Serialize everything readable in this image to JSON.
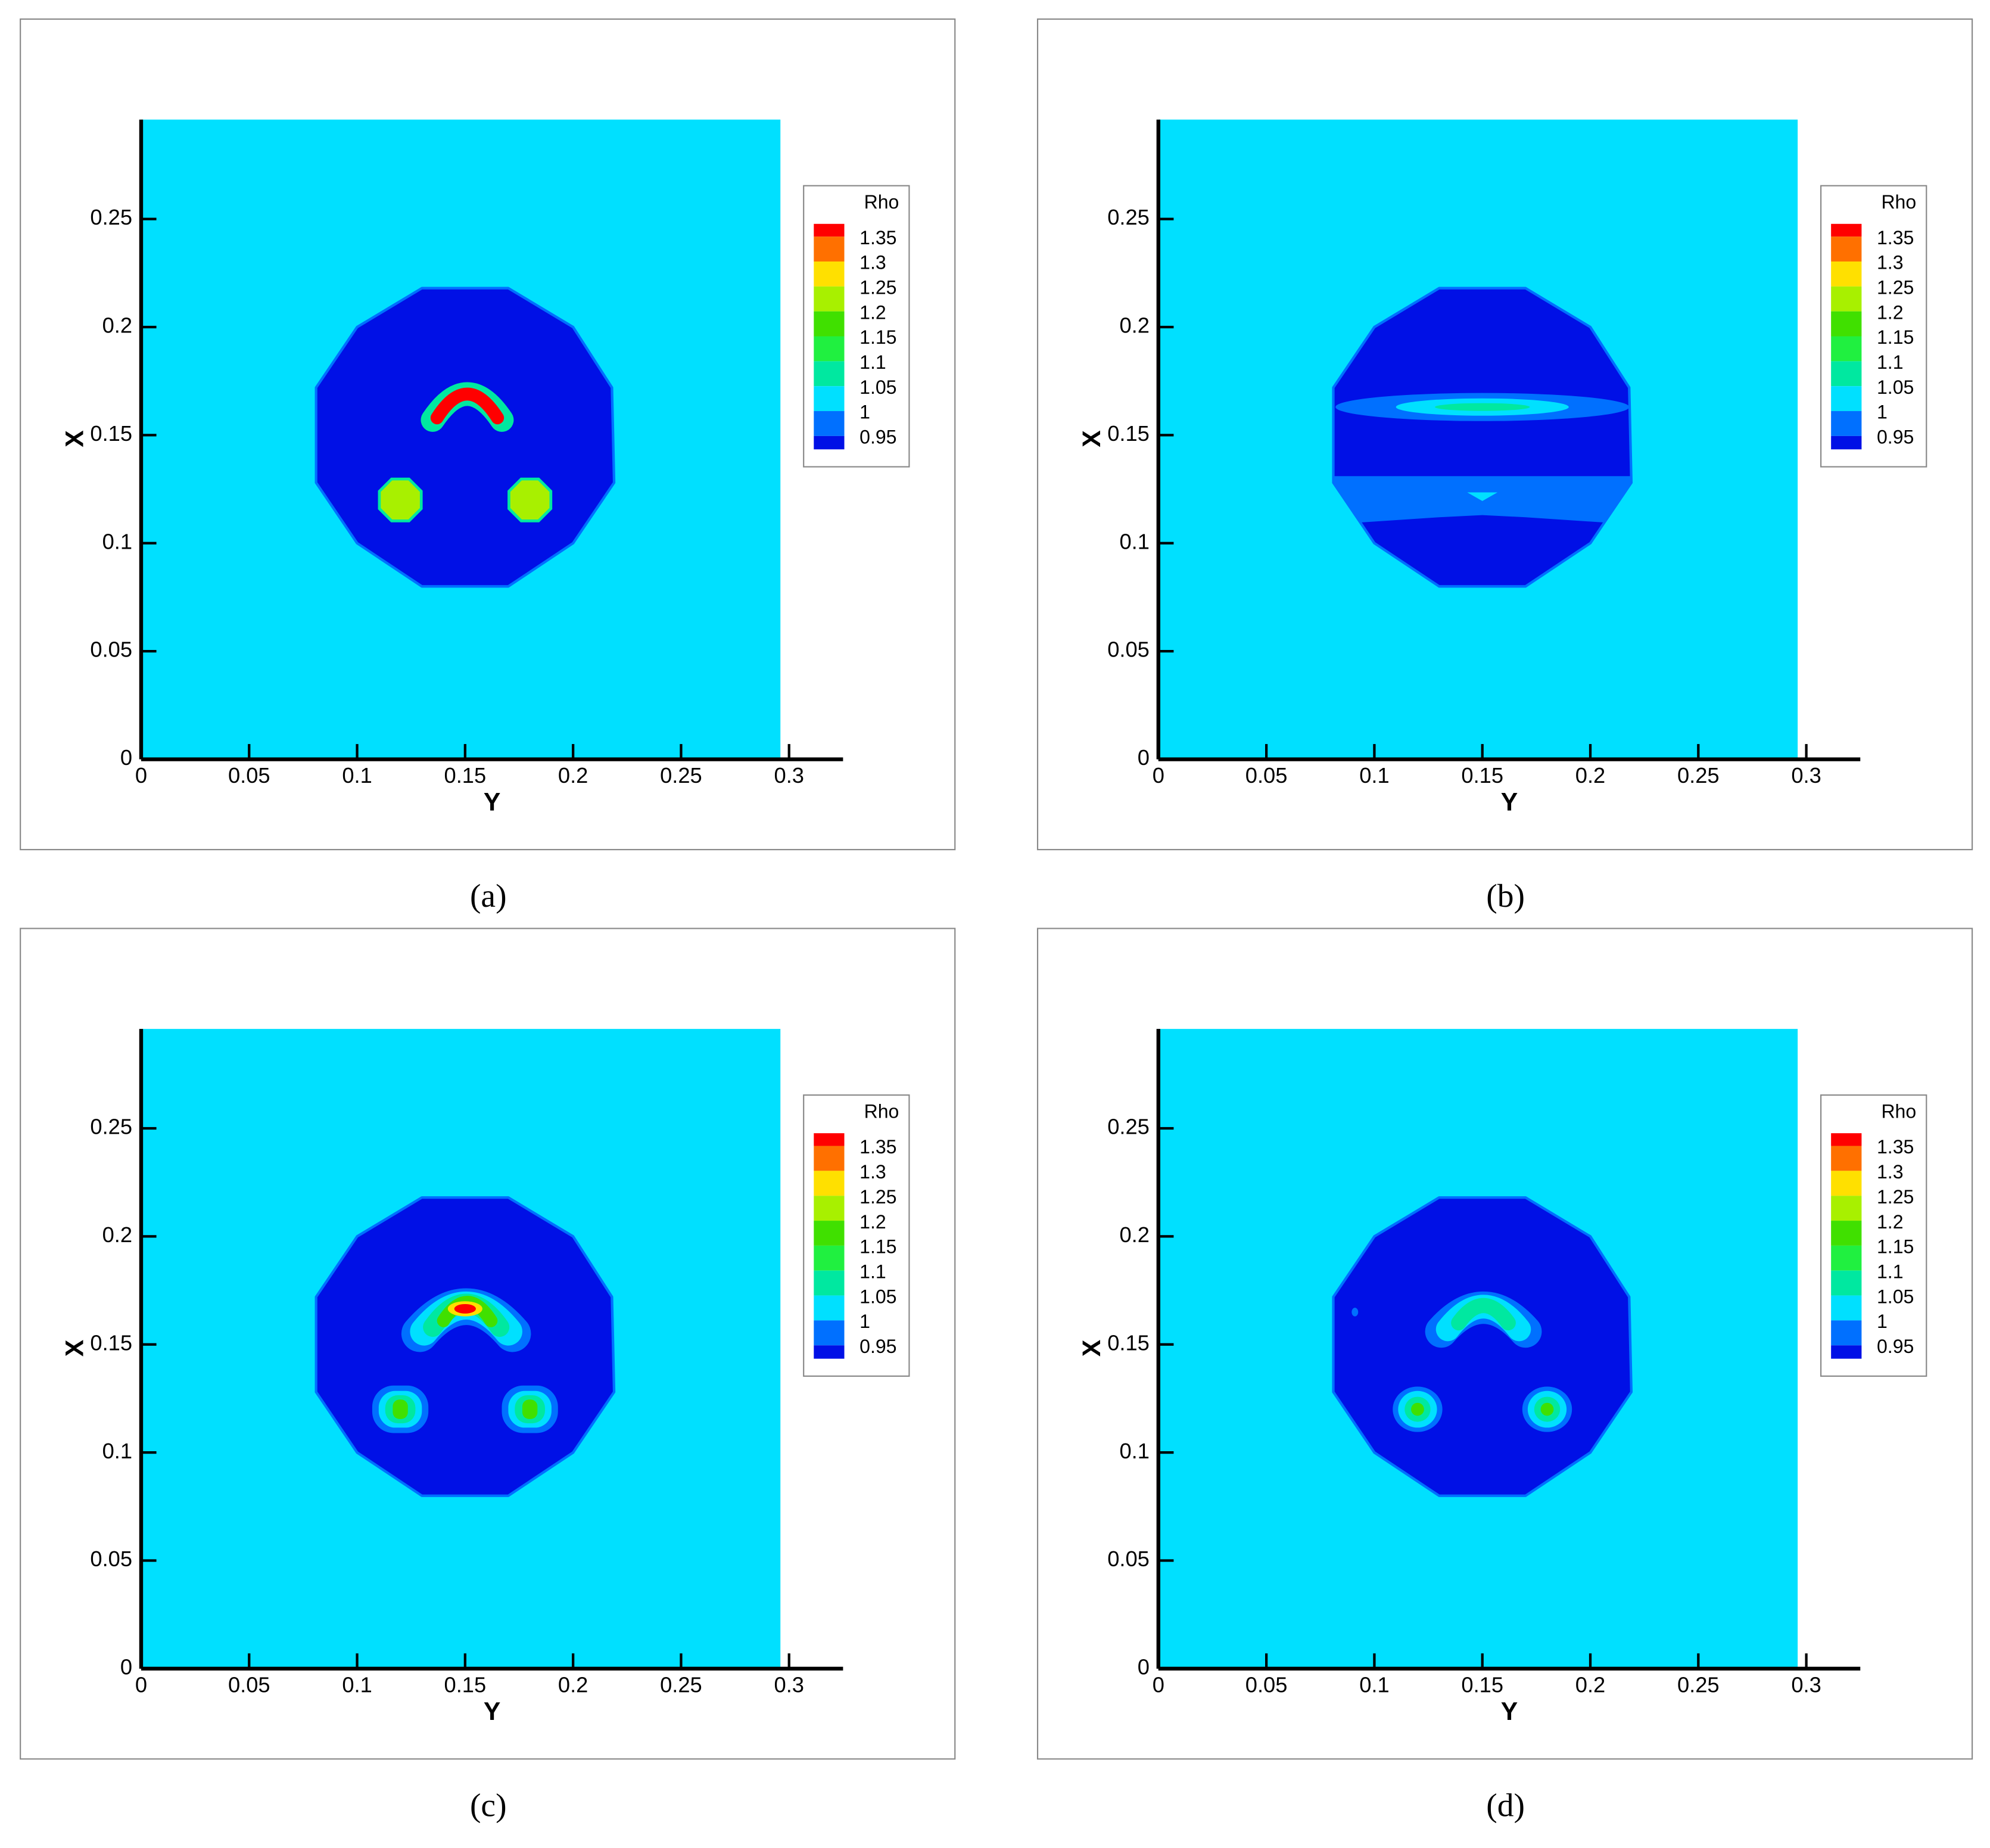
{
  "chart_data": [
    {
      "type": "contour",
      "caption": "(a)",
      "xlabel": "Y",
      "ylabel": "X",
      "legend_title": "Rho",
      "levels": [
        1.35,
        1.3,
        1.25,
        1.2,
        1.15,
        1.1,
        1.05,
        1,
        0.95
      ],
      "legend_colors": [
        "#ff0000",
        "#ff7000",
        "#ffe000",
        "#a8f000",
        "#40e000",
        "#20f040",
        "#00e8a0",
        "#00e0ff",
        "#0070ff",
        "#0010e6"
      ],
      "background_color": "#00e0ff",
      "xlim": [
        0,
        0.325
      ],
      "ylim": [
        0,
        0.296
      ],
      "xticks": [
        0,
        0.05,
        0.1,
        0.15,
        0.2,
        0.25,
        0.3
      ],
      "yticks": [
        0,
        0.05,
        0.1,
        0.15,
        0.2,
        0.25
      ]
    },
    {
      "type": "contour",
      "caption": "(b)",
      "xlabel": "Y",
      "ylabel": "X",
      "legend_title": "Rho",
      "levels": [
        1.35,
        1.3,
        1.25,
        1.2,
        1.15,
        1.1,
        1.05,
        1,
        0.95
      ],
      "legend_colors": [
        "#ff0000",
        "#ff7000",
        "#ffe000",
        "#a8f000",
        "#40e000",
        "#20f040",
        "#00e8a0",
        "#00e0ff",
        "#0070ff",
        "#0010e6"
      ],
      "background_color": "#00e0ff",
      "xlim": [
        0,
        0.325
      ],
      "ylim": [
        0,
        0.296
      ],
      "xticks": [
        0,
        0.05,
        0.1,
        0.15,
        0.2,
        0.25,
        0.3
      ],
      "yticks": [
        0,
        0.05,
        0.1,
        0.15,
        0.2,
        0.25
      ]
    },
    {
      "type": "contour",
      "caption": "(c)",
      "xlabel": "Y",
      "ylabel": "X",
      "legend_title": "Rho",
      "levels": [
        1.35,
        1.3,
        1.25,
        1.2,
        1.15,
        1.1,
        1.05,
        1,
        0.95
      ],
      "legend_colors": [
        "#ff0000",
        "#ff7000",
        "#ffe000",
        "#a8f000",
        "#40e000",
        "#20f040",
        "#00e8a0",
        "#00e0ff",
        "#0070ff",
        "#0010e6"
      ],
      "background_color": "#00e0ff",
      "xlim": [
        0,
        0.325
      ],
      "ylim": [
        0,
        0.296
      ],
      "xticks": [
        0,
        0.05,
        0.1,
        0.15,
        0.2,
        0.25,
        0.3
      ],
      "yticks": [
        0,
        0.05,
        0.1,
        0.15,
        0.2,
        0.25
      ]
    },
    {
      "type": "contour",
      "caption": "(d)",
      "xlabel": "Y",
      "ylabel": "X",
      "legend_title": "Rho",
      "levels": [
        1.35,
        1.3,
        1.25,
        1.2,
        1.15,
        1.1,
        1.05,
        1,
        0.95
      ],
      "legend_colors": [
        "#ff0000",
        "#ff7000",
        "#ffe000",
        "#a8f000",
        "#40e000",
        "#20f040",
        "#00e8a0",
        "#00e0ff",
        "#0070ff",
        "#0010e6"
      ],
      "background_color": "#00e0ff",
      "xlim": [
        0,
        0.325
      ],
      "ylim": [
        0,
        0.296
      ],
      "xticks": [
        0,
        0.05,
        0.1,
        0.15,
        0.2,
        0.25,
        0.3
      ],
      "yticks": [
        0,
        0.05,
        0.1,
        0.15,
        0.2,
        0.25
      ]
    }
  ]
}
